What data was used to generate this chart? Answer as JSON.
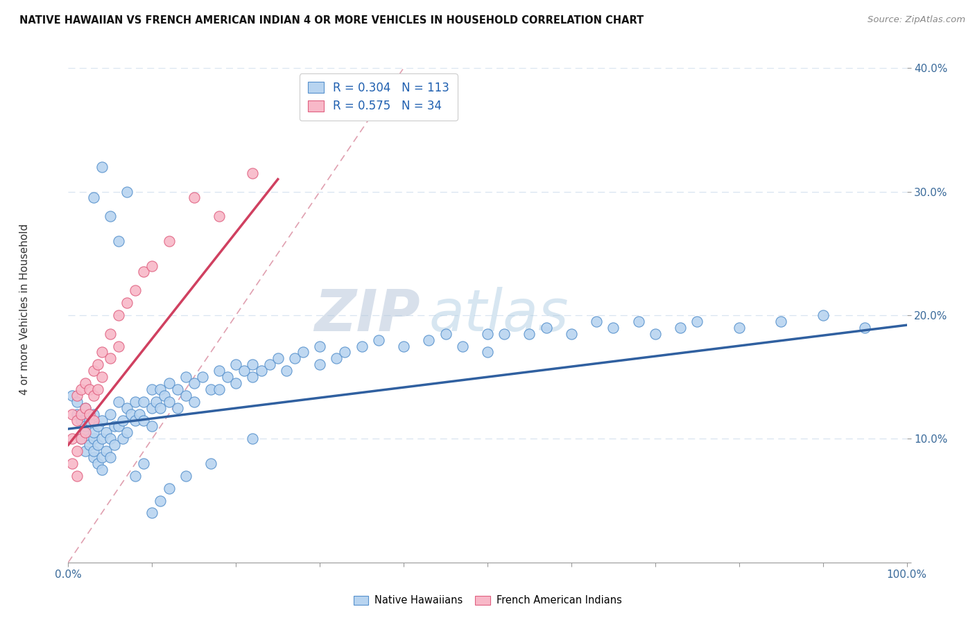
{
  "title": "NATIVE HAWAIIAN VS FRENCH AMERICAN INDIAN 4 OR MORE VEHICLES IN HOUSEHOLD CORRELATION CHART",
  "source": "Source: ZipAtlas.com",
  "ylabel": "4 or more Vehicles in Household",
  "xlim": [
    0,
    1.0
  ],
  "ylim": [
    0,
    0.4
  ],
  "xticks": [
    0.0,
    0.1,
    0.2,
    0.3,
    0.4,
    0.5,
    0.6,
    0.7,
    0.8,
    0.9,
    1.0
  ],
  "xticklabels": [
    "0.0%",
    "",
    "",
    "",
    "",
    "",
    "",
    "",
    "",
    "",
    "100.0%"
  ],
  "yticks": [
    0.0,
    0.1,
    0.2,
    0.3,
    0.4
  ],
  "yticklabels": [
    "",
    "10.0%",
    "20.0%",
    "30.0%",
    "40.0%"
  ],
  "blue_fill": "#b8d4f0",
  "blue_edge": "#5590cc",
  "pink_fill": "#f8b8c8",
  "pink_edge": "#e06080",
  "blue_line_color": "#3060a0",
  "pink_line_color": "#d04060",
  "diag_line_color": "#d0b0c0",
  "grid_color": "#d8e4f0",
  "R_blue": 0.304,
  "N_blue": 113,
  "R_pink": 0.575,
  "N_pink": 34,
  "watermark_zip": "ZIP",
  "watermark_atlas": "atlas",
  "watermark_color_zip": "#b8c8dc",
  "watermark_color_atlas": "#a8c8e0",
  "title_fontsize": 10.5,
  "source_fontsize": 9.5,
  "blue_scatter_x": [
    0.005,
    0.01,
    0.01,
    0.015,
    0.015,
    0.02,
    0.02,
    0.02,
    0.02,
    0.025,
    0.025,
    0.025,
    0.03,
    0.03,
    0.03,
    0.03,
    0.03,
    0.035,
    0.035,
    0.035,
    0.04,
    0.04,
    0.04,
    0.04,
    0.045,
    0.045,
    0.05,
    0.05,
    0.05,
    0.055,
    0.055,
    0.06,
    0.06,
    0.065,
    0.065,
    0.07,
    0.07,
    0.075,
    0.08,
    0.08,
    0.085,
    0.09,
    0.09,
    0.1,
    0.1,
    0.1,
    0.105,
    0.11,
    0.11,
    0.115,
    0.12,
    0.12,
    0.13,
    0.13,
    0.14,
    0.14,
    0.15,
    0.15,
    0.16,
    0.17,
    0.18,
    0.18,
    0.19,
    0.2,
    0.2,
    0.21,
    0.22,
    0.22,
    0.23,
    0.24,
    0.25,
    0.26,
    0.27,
    0.28,
    0.3,
    0.3,
    0.32,
    0.33,
    0.35,
    0.37,
    0.4,
    0.43,
    0.45,
    0.47,
    0.5,
    0.5,
    0.52,
    0.55,
    0.57,
    0.6,
    0.63,
    0.65,
    0.68,
    0.7,
    0.73,
    0.75,
    0.8,
    0.85,
    0.9,
    0.95,
    0.03,
    0.04,
    0.05,
    0.06,
    0.07,
    0.08,
    0.09,
    0.1,
    0.11,
    0.12,
    0.14,
    0.17,
    0.22
  ],
  "blue_scatter_y": [
    0.135,
    0.13,
    0.12,
    0.115,
    0.1,
    0.125,
    0.105,
    0.09,
    0.11,
    0.1,
    0.115,
    0.095,
    0.12,
    0.1,
    0.085,
    0.105,
    0.09,
    0.11,
    0.095,
    0.08,
    0.115,
    0.1,
    0.085,
    0.075,
    0.105,
    0.09,
    0.12,
    0.1,
    0.085,
    0.11,
    0.095,
    0.13,
    0.11,
    0.115,
    0.1,
    0.125,
    0.105,
    0.12,
    0.13,
    0.115,
    0.12,
    0.13,
    0.115,
    0.14,
    0.125,
    0.11,
    0.13,
    0.14,
    0.125,
    0.135,
    0.145,
    0.13,
    0.14,
    0.125,
    0.15,
    0.135,
    0.145,
    0.13,
    0.15,
    0.14,
    0.155,
    0.14,
    0.15,
    0.16,
    0.145,
    0.155,
    0.16,
    0.15,
    0.155,
    0.16,
    0.165,
    0.155,
    0.165,
    0.17,
    0.16,
    0.175,
    0.165,
    0.17,
    0.175,
    0.18,
    0.175,
    0.18,
    0.185,
    0.175,
    0.185,
    0.17,
    0.185,
    0.185,
    0.19,
    0.185,
    0.195,
    0.19,
    0.195,
    0.185,
    0.19,
    0.195,
    0.19,
    0.195,
    0.2,
    0.19,
    0.295,
    0.32,
    0.28,
    0.26,
    0.3,
    0.07,
    0.08,
    0.04,
    0.05,
    0.06,
    0.07,
    0.08,
    0.1
  ],
  "pink_scatter_x": [
    0.005,
    0.005,
    0.005,
    0.01,
    0.01,
    0.01,
    0.01,
    0.015,
    0.015,
    0.015,
    0.02,
    0.02,
    0.02,
    0.025,
    0.025,
    0.03,
    0.03,
    0.03,
    0.035,
    0.035,
    0.04,
    0.04,
    0.05,
    0.05,
    0.06,
    0.06,
    0.07,
    0.08,
    0.09,
    0.1,
    0.12,
    0.15,
    0.18,
    0.22
  ],
  "pink_scatter_y": [
    0.12,
    0.1,
    0.08,
    0.135,
    0.115,
    0.09,
    0.07,
    0.14,
    0.12,
    0.1,
    0.145,
    0.125,
    0.105,
    0.14,
    0.12,
    0.155,
    0.135,
    0.115,
    0.16,
    0.14,
    0.17,
    0.15,
    0.185,
    0.165,
    0.2,
    0.175,
    0.21,
    0.22,
    0.235,
    0.24,
    0.26,
    0.295,
    0.28,
    0.315
  ],
  "blue_line_x": [
    0.0,
    1.0
  ],
  "blue_line_y_start": 0.108,
  "blue_line_y_end": 0.192,
  "pink_line_x_start": 0.0,
  "pink_line_x_end": 0.25,
  "pink_line_y_start": 0.095,
  "pink_line_y_end": 0.31
}
